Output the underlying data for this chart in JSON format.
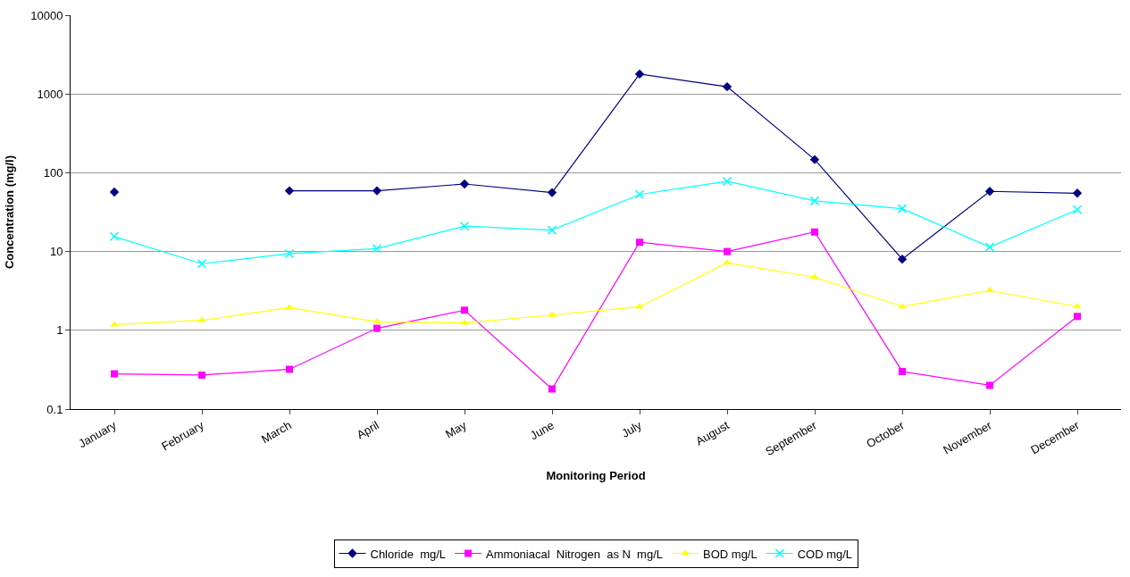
{
  "chart_data": {
    "type": "line",
    "xlabel": "Monitoring Period",
    "ylabel": "Concentration (mg/l)",
    "categories": [
      "January",
      "February",
      "March",
      "April",
      "May",
      "June",
      "July",
      "August",
      "September",
      "October",
      "November",
      "December"
    ],
    "log": "y",
    "ylim": [
      0.1,
      10000
    ],
    "yticks": [
      0.1,
      1,
      10,
      100,
      1000,
      10000
    ],
    "grid": "y",
    "legend": "bottom",
    "series": [
      {
        "name": "Chloride  mg/L",
        "color": "#000080",
        "marker": "diamond",
        "values": [
          57,
          null,
          59,
          59,
          72,
          56,
          1790,
          1235,
          147,
          8.0,
          58,
          55
        ]
      },
      {
        "name": "Ammoniacal  Nitrogen  as N  mg/L",
        "color": "#ff00ff",
        "marker": "square",
        "values": [
          0.28,
          0.27,
          0.32,
          1.06,
          1.8,
          0.18,
          13.1,
          10,
          17.7,
          0.3,
          0.2,
          1.5
        ]
      },
      {
        "name": "BOD mg/L",
        "color": "#ffff00",
        "marker": "triangle",
        "values": [
          1.18,
          1.34,
          1.94,
          1.28,
          1.24,
          1.56,
          1.99,
          7.2,
          4.7,
          2.0,
          3.2,
          2.0
        ]
      },
      {
        "name": "COD mg/L",
        "color": "#00ffff",
        "marker": "cross",
        "values": [
          15.5,
          7.0,
          9.4,
          10.9,
          21,
          18.7,
          53,
          78,
          44,
          35,
          11.4,
          34
        ]
      }
    ]
  }
}
